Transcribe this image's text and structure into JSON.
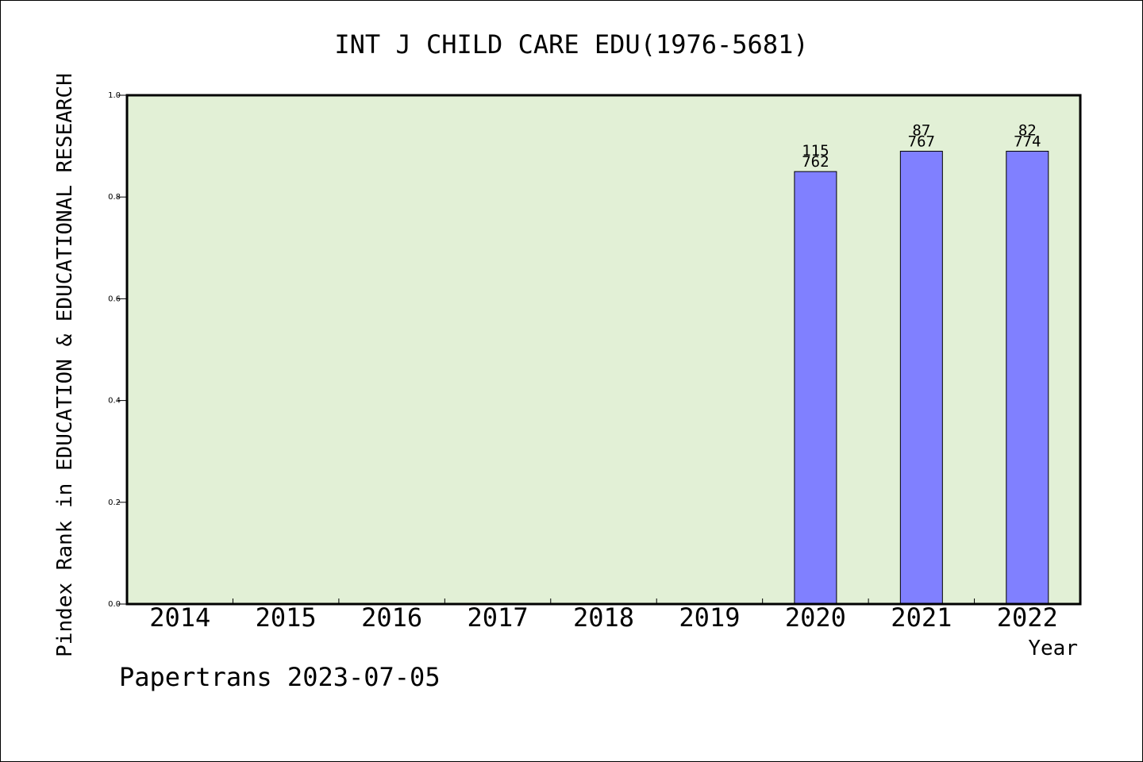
{
  "chart_data": {
    "type": "bar",
    "title": "INT J CHILD CARE EDU(1976-5681)",
    "xlabel": "Year",
    "ylabel": "Pindex Rank in EDUCATION & EDUCATIONAL RESEARCH",
    "categories": [
      "2014",
      "2015",
      "2016",
      "2017",
      "2018",
      "2019",
      "2020",
      "2021",
      "2022"
    ],
    "values": [
      null,
      null,
      null,
      null,
      null,
      null,
      0.85,
      0.89,
      0.89
    ],
    "bar_labels": [
      {
        "top": "",
        "bottom": ""
      },
      {
        "top": "",
        "bottom": ""
      },
      {
        "top": "",
        "bottom": ""
      },
      {
        "top": "",
        "bottom": ""
      },
      {
        "top": "",
        "bottom": ""
      },
      {
        "top": "",
        "bottom": ""
      },
      {
        "top": "115",
        "bottom": "762"
      },
      {
        "top": "87",
        "bottom": "767"
      },
      {
        "top": "82",
        "bottom": "774"
      }
    ],
    "ylim": [
      0,
      1.0
    ],
    "yticks": [
      "0.0",
      "0.2",
      "0.4",
      "0.6",
      "0.8",
      "1.0"
    ],
    "grid": false,
    "colors": {
      "plot_background": "#e2f0d6",
      "bar_fill": "#8080ff",
      "bar_stroke": "#000000"
    }
  },
  "footer": {
    "credit": "Papertrans 2023-07-05"
  }
}
